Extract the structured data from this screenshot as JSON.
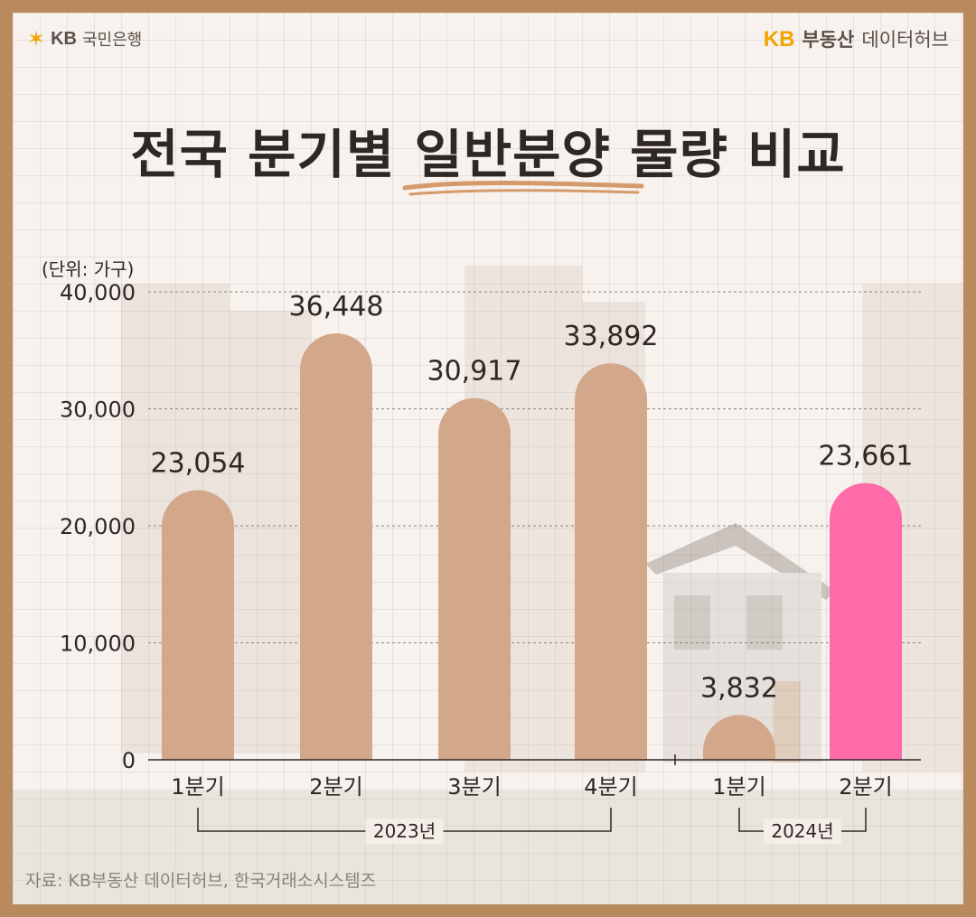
{
  "brand": {
    "left_symbol": "✶",
    "left_kb": "KB",
    "left_bank": "국민은행",
    "right_kb": "KB",
    "right_realestate": "부동산",
    "right_hub": "데이터허브",
    "accent": "#f2a400"
  },
  "title": "전국 분기별 일반분양 물량 비교",
  "unit_label": "(단위: 가구)",
  "source": "자료: KB부동산 데이터허브, 한국거래소시스템즈",
  "chart_data": {
    "type": "bar",
    "categories": [
      "1분기",
      "2분기",
      "3분기",
      "4분기",
      "1분기",
      "2분기"
    ],
    "values": [
      23054,
      36448,
      30917,
      33892,
      3832,
      23661
    ],
    "value_labels": [
      "23,054",
      "36,448",
      "30,917",
      "33,892",
      "3,832",
      "23,661"
    ],
    "groups": [
      {
        "label": "2023년",
        "from": 0,
        "to": 3
      },
      {
        "label": "2024년",
        "from": 4,
        "to": 5
      }
    ],
    "yticks": [
      0,
      10000,
      20000,
      30000,
      40000
    ],
    "ytick_labels": [
      "0",
      "10,000",
      "20,000",
      "30,000",
      "40,000"
    ],
    "ylim": [
      0,
      40000
    ],
    "grid": true,
    "colors": {
      "default": "#d3a78a",
      "highlight": "#ff6aa9",
      "highlight_index": 5
    }
  }
}
